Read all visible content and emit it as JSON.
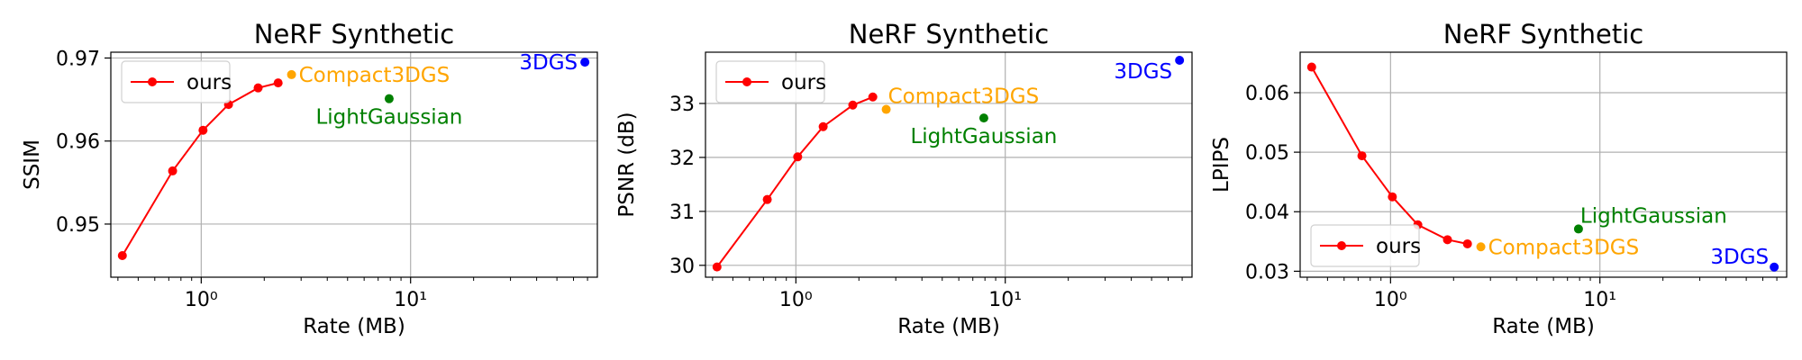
{
  "colors": {
    "ours": "#ff0000",
    "compact3dgs": "#ffa500",
    "lightgaussian": "#008000",
    "3dgs": "#0000ff",
    "grid": "#b0b0b0",
    "axes": "#000000"
  },
  "chart_data": [
    {
      "type": "scatter",
      "title": "NeRF Synthetic",
      "xlabel": "Rate (MB)",
      "ylabel": "SSIM",
      "xscale": "log",
      "xlim": [
        0.37,
        78
      ],
      "ylim": [
        0.9436,
        0.9707
      ],
      "yticks": [
        0.95,
        0.96,
        0.97
      ],
      "ytick_labels": [
        "0.95",
        "0.96",
        "0.97"
      ],
      "xticks": [
        1,
        10
      ],
      "xtick_labels": [
        "10⁰",
        "10¹"
      ],
      "grid": true,
      "legend": {
        "placement": "upper-left",
        "entries": [
          "ours"
        ]
      },
      "series": [
        {
          "name": "ours",
          "kind": "line",
          "color_key": "ours",
          "x": [
            0.42,
            0.73,
            1.02,
            1.35,
            1.87,
            2.33
          ],
          "y": [
            0.9462,
            0.9564,
            0.9613,
            0.9644,
            0.9664,
            0.967
          ]
        }
      ],
      "points": [
        {
          "label": "Compact3DGS",
          "color_key": "compact3dgs",
          "x": 2.7,
          "y": 0.968,
          "label_pos": "right"
        },
        {
          "label": "LightGaussian",
          "color_key": "lightgaussian",
          "x": 7.9,
          "y": 0.9651,
          "label_pos": "below"
        },
        {
          "label": "3DGS",
          "color_key": "3dgs",
          "x": 68.0,
          "y": 0.9695,
          "label_pos": "left"
        }
      ]
    },
    {
      "type": "scatter",
      "title": "NeRF Synthetic",
      "xlabel": "Rate (MB)",
      "ylabel": "PSNR (dB)",
      "xscale": "log",
      "xlim": [
        0.37,
        78
      ],
      "ylim": [
        29.78,
        33.95
      ],
      "yticks": [
        30,
        31,
        32,
        33
      ],
      "ytick_labels": [
        "30",
        "31",
        "32",
        "33"
      ],
      "xticks": [
        1,
        10
      ],
      "xtick_labels": [
        "10⁰",
        "10¹"
      ],
      "grid": true,
      "legend": {
        "placement": "upper-left",
        "entries": [
          "ours"
        ]
      },
      "series": [
        {
          "name": "ours",
          "kind": "line",
          "color_key": "ours",
          "x": [
            0.42,
            0.73,
            1.02,
            1.35,
            1.87,
            2.33
          ],
          "y": [
            29.97,
            31.22,
            32.01,
            32.57,
            32.97,
            33.12
          ]
        }
      ],
      "points": [
        {
          "label": "Compact3DGS",
          "color_key": "compact3dgs",
          "x": 2.7,
          "y": 32.89,
          "label_pos": "right-up"
        },
        {
          "label": "LightGaussian",
          "color_key": "lightgaussian",
          "x": 7.9,
          "y": 32.73,
          "label_pos": "below"
        },
        {
          "label": "3DGS",
          "color_key": "3dgs",
          "x": 68.0,
          "y": 33.8,
          "label_pos": "left-down"
        }
      ]
    },
    {
      "type": "scatter",
      "title": "NeRF Synthetic",
      "xlabel": "Rate (MB)",
      "ylabel": "LPIPS",
      "xscale": "log",
      "xlim": [
        0.37,
        78
      ],
      "ylim": [
        0.029,
        0.0668
      ],
      "yticks": [
        0.03,
        0.04,
        0.05,
        0.06
      ],
      "ytick_labels": [
        "0.03",
        "0.04",
        "0.05",
        "0.06"
      ],
      "xticks": [
        1,
        10
      ],
      "xtick_labels": [
        "10⁰",
        "10¹"
      ],
      "grid": true,
      "legend": {
        "placement": "lower-left",
        "entries": [
          "ours"
        ]
      },
      "series": [
        {
          "name": "ours",
          "kind": "line",
          "color_key": "ours",
          "x": [
            0.42,
            0.73,
            1.02,
            1.35,
            1.87,
            2.33
          ],
          "y": [
            0.0643,
            0.0494,
            0.0425,
            0.0378,
            0.0353,
            0.0346
          ]
        }
      ],
      "points": [
        {
          "label": "Compact3DGS",
          "color_key": "compact3dgs",
          "x": 2.7,
          "y": 0.0341,
          "label_pos": "right"
        },
        {
          "label": "LightGaussian",
          "color_key": "lightgaussian",
          "x": 7.9,
          "y": 0.0371,
          "label_pos": "right-up"
        },
        {
          "label": "3DGS",
          "color_key": "3dgs",
          "x": 68.0,
          "y": 0.0307,
          "label_pos": "left-up"
        }
      ]
    }
  ]
}
